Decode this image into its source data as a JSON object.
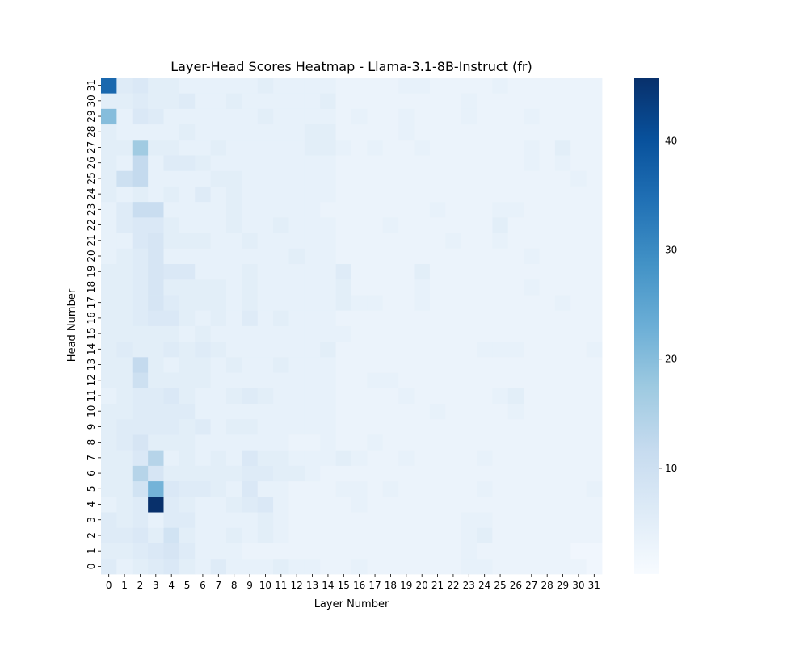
{
  "chart_data": {
    "type": "heatmap",
    "title": "Layer-Head Scores Heatmap - Llama-3.1-8B-Instruct (fr)",
    "xlabel": "Layer Number",
    "ylabel": "Head Number",
    "x_ticks": [
      "0",
      "1",
      "2",
      "3",
      "4",
      "5",
      "6",
      "7",
      "8",
      "9",
      "10",
      "11",
      "12",
      "13",
      "14",
      "15",
      "16",
      "17",
      "18",
      "19",
      "20",
      "21",
      "22",
      "23",
      "24",
      "25",
      "26",
      "27",
      "28",
      "29",
      "30",
      "31"
    ],
    "y_ticks": [
      "0",
      "1",
      "2",
      "3",
      "4",
      "5",
      "6",
      "7",
      "8",
      "9",
      "10",
      "11",
      "12",
      "13",
      "14",
      "15",
      "16",
      "17",
      "18",
      "19",
      "20",
      "21",
      "22",
      "23",
      "24",
      "25",
      "26",
      "27",
      "28",
      "29",
      "30",
      "31"
    ],
    "colorscale": "Blues",
    "vmin": 0.3,
    "vmax": 45.8,
    "colorbar_ticks": [
      "10",
      "20",
      "30",
      "40"
    ],
    "colorbar_tick_values": [
      10,
      20,
      30,
      40
    ],
    "values": [
      [
        6,
        4,
        5,
        6,
        7,
        5,
        4,
        6,
        4,
        4,
        4,
        5,
        4,
        4,
        3,
        3,
        4,
        3,
        3,
        3,
        3,
        3,
        3,
        4,
        4,
        3,
        3,
        3,
        3,
        3,
        3,
        2
      ],
      [
        5,
        5,
        6,
        7,
        8,
        6,
        4,
        4,
        4,
        3,
        3,
        3,
        3,
        3,
        3,
        3,
        3,
        3,
        3,
        3,
        3,
        3,
        3,
        4,
        3,
        3,
        3,
        3,
        3,
        3,
        2,
        2
      ],
      [
        6,
        6,
        7,
        5,
        9,
        5,
        4,
        4,
        5,
        4,
        5,
        4,
        3,
        3,
        3,
        3,
        3,
        3,
        3,
        3,
        3,
        3,
        3,
        4,
        5,
        3,
        3,
        3,
        3,
        3,
        3,
        3
      ],
      [
        6,
        5,
        6,
        4,
        6,
        6,
        4,
        4,
        4,
        4,
        5,
        4,
        3,
        3,
        3,
        3,
        3,
        3,
        3,
        3,
        3,
        3,
        3,
        4,
        4,
        3,
        3,
        3,
        3,
        3,
        3,
        3
      ],
      [
        4,
        5,
        6,
        45.8,
        6,
        5,
        4,
        4,
        5,
        6,
        7,
        4,
        3,
        3,
        3,
        3,
        4,
        3,
        3,
        3,
        3,
        3,
        3,
        3,
        3,
        3,
        3,
        3,
        3,
        3,
        3,
        3
      ],
      [
        5,
        5,
        9,
        22,
        7,
        6,
        6,
        5,
        4,
        7,
        4,
        4,
        3,
        3,
        3,
        4,
        4,
        3,
        4,
        3,
        3,
        3,
        3,
        3,
        4,
        3,
        3,
        3,
        3,
        3,
        3,
        4
      ],
      [
        5,
        5,
        14,
        8,
        5,
        5,
        5,
        5,
        5,
        6,
        6,
        5,
        5,
        4,
        3,
        3,
        3,
        3,
        3,
        3,
        3,
        3,
        3,
        3,
        3,
        3,
        3,
        3,
        3,
        3,
        3,
        3
      ],
      [
        5,
        5,
        7,
        14,
        4,
        5,
        4,
        5,
        4,
        7,
        5,
        5,
        4,
        4,
        4,
        5,
        4,
        3,
        3,
        4,
        3,
        3,
        3,
        3,
        4,
        3,
        3,
        3,
        3,
        3,
        3,
        3
      ],
      [
        5,
        6,
        8,
        5,
        5,
        5,
        4,
        4,
        4,
        4,
        4,
        4,
        3,
        3,
        4,
        3,
        3,
        4,
        3,
        3,
        3,
        3,
        3,
        3,
        3,
        3,
        3,
        3,
        3,
        3,
        3,
        3
      ],
      [
        5,
        6,
        6,
        6,
        6,
        5,
        6,
        4,
        5,
        5,
        4,
        4,
        4,
        4,
        4,
        3,
        3,
        3,
        3,
        3,
        3,
        3,
        3,
        3,
        3,
        3,
        3,
        3,
        3,
        3,
        3,
        3
      ],
      [
        5,
        5,
        6,
        6,
        6,
        6,
        4,
        4,
        4,
        4,
        4,
        4,
        4,
        4,
        4,
        3,
        3,
        3,
        3,
        3,
        3,
        4,
        3,
        3,
        3,
        3,
        4,
        3,
        3,
        3,
        3,
        3
      ],
      [
        4,
        5,
        6,
        6,
        7,
        5,
        4,
        4,
        5,
        6,
        5,
        4,
        4,
        4,
        4,
        3,
        3,
        3,
        3,
        4,
        3,
        3,
        3,
        3,
        3,
        4,
        5,
        3,
        3,
        3,
        3,
        3
      ],
      [
        5,
        5,
        10,
        5,
        5,
        5,
        5,
        4,
        4,
        4,
        4,
        4,
        4,
        4,
        4,
        3,
        3,
        4,
        4,
        3,
        3,
        3,
        3,
        3,
        3,
        3,
        3,
        3,
        3,
        3,
        3,
        3
      ],
      [
        5,
        5,
        12,
        5,
        4,
        5,
        5,
        4,
        5,
        4,
        4,
        5,
        4,
        4,
        4,
        3,
        3,
        3,
        3,
        3,
        3,
        3,
        3,
        3,
        3,
        3,
        3,
        3,
        3,
        3,
        3,
        3
      ],
      [
        5,
        6,
        5,
        5,
        6,
        5,
        6,
        5,
        4,
        4,
        4,
        4,
        4,
        4,
        5,
        3,
        3,
        3,
        3,
        3,
        3,
        3,
        3,
        3,
        4,
        4,
        4,
        3,
        3,
        3,
        3,
        4
      ],
      [
        5,
        5,
        5,
        5,
        5,
        4,
        5,
        4,
        4,
        4,
        4,
        4,
        4,
        4,
        4,
        4,
        3,
        3,
        3,
        3,
        3,
        3,
        3,
        3,
        3,
        3,
        3,
        3,
        3,
        3,
        3,
        3
      ],
      [
        5,
        5,
        6,
        7,
        7,
        5,
        4,
        5,
        4,
        6,
        4,
        5,
        4,
        4,
        4,
        3,
        3,
        3,
        3,
        3,
        3,
        3,
        3,
        3,
        3,
        3,
        3,
        3,
        3,
        3,
        3,
        3
      ],
      [
        5,
        5,
        6,
        8,
        6,
        5,
        5,
        5,
        4,
        5,
        4,
        4,
        4,
        4,
        4,
        5,
        4,
        4,
        3,
        3,
        4,
        3,
        3,
        3,
        3,
        3,
        3,
        3,
        3,
        4,
        3,
        3
      ],
      [
        5,
        5,
        6,
        8,
        5,
        5,
        5,
        5,
        4,
        5,
        4,
        4,
        4,
        4,
        4,
        5,
        3,
        3,
        3,
        3,
        4,
        3,
        3,
        3,
        3,
        3,
        3,
        4,
        3,
        3,
        3,
        3
      ],
      [
        5,
        5,
        6,
        8,
        7,
        7,
        4,
        4,
        4,
        5,
        4,
        4,
        4,
        4,
        4,
        6,
        3,
        3,
        3,
        3,
        5,
        3,
        3,
        3,
        3,
        3,
        3,
        3,
        3,
        3,
        3,
        3
      ],
      [
        4,
        5,
        6,
        8,
        4,
        4,
        4,
        4,
        4,
        4,
        4,
        4,
        5,
        4,
        4,
        3,
        3,
        3,
        3,
        3,
        3,
        3,
        3,
        3,
        3,
        3,
        3,
        4,
        3,
        3,
        3,
        3
      ],
      [
        4,
        4,
        7,
        8,
        5,
        5,
        5,
        4,
        4,
        5,
        4,
        4,
        4,
        4,
        4,
        3,
        3,
        3,
        3,
        3,
        3,
        3,
        4,
        3,
        3,
        4,
        3,
        3,
        3,
        3,
        3,
        3
      ],
      [
        4,
        6,
        7,
        7,
        5,
        4,
        4,
        4,
        5,
        4,
        4,
        5,
        4,
        4,
        4,
        3,
        3,
        3,
        4,
        3,
        3,
        3,
        3,
        3,
        3,
        5,
        3,
        3,
        3,
        3,
        3,
        3
      ],
      [
        4,
        6,
        11,
        11,
        4,
        4,
        4,
        4,
        5,
        4,
        4,
        4,
        4,
        4,
        3,
        3,
        3,
        3,
        3,
        3,
        3,
        4,
        3,
        3,
        3,
        4,
        4,
        3,
        3,
        3,
        3,
        3
      ],
      [
        5,
        4,
        5,
        4,
        5,
        4,
        6,
        4,
        5,
        4,
        4,
        4,
        4,
        4,
        4,
        3,
        3,
        3,
        3,
        3,
        3,
        3,
        3,
        3,
        3,
        3,
        3,
        3,
        3,
        3,
        3,
        3
      ],
      [
        5,
        10,
        12,
        4,
        4,
        4,
        4,
        5,
        5,
        4,
        4,
        4,
        4,
        4,
        4,
        3,
        3,
        3,
        3,
        3,
        3,
        3,
        3,
        3,
        3,
        3,
        3,
        3,
        3,
        3,
        4,
        3
      ],
      [
        5,
        4,
        12,
        4,
        6,
        6,
        5,
        4,
        4,
        4,
        4,
        4,
        4,
        4,
        4,
        3,
        3,
        3,
        3,
        3,
        3,
        3,
        3,
        3,
        3,
        3,
        3,
        4,
        3,
        4,
        3,
        3
      ],
      [
        5,
        5,
        17,
        5,
        5,
        4,
        4,
        5,
        4,
        4,
        4,
        4,
        4,
        5,
        5,
        4,
        3,
        4,
        3,
        3,
        4,
        3,
        3,
        3,
        3,
        3,
        3,
        4,
        3,
        5,
        3,
        3
      ],
      [
        5,
        4,
        4,
        4,
        4,
        5,
        4,
        4,
        4,
        4,
        4,
        4,
        4,
        5,
        5,
        3,
        3,
        3,
        3,
        4,
        3,
        3,
        3,
        3,
        3,
        3,
        3,
        3,
        3,
        3,
        3,
        3
      ],
      [
        20,
        4,
        7,
        6,
        4,
        4,
        4,
        4,
        4,
        4,
        5,
        4,
        4,
        4,
        4,
        3,
        4,
        3,
        3,
        4,
        3,
        3,
        3,
        4,
        3,
        3,
        3,
        4,
        3,
        3,
        3,
        3
      ],
      [
        5,
        5,
        6,
        5,
        5,
        6,
        4,
        4,
        5,
        4,
        4,
        4,
        4,
        4,
        5,
        3,
        3,
        3,
        3,
        3,
        3,
        3,
        3,
        4,
        3,
        3,
        3,
        3,
        3,
        3,
        3,
        3
      ],
      [
        36,
        6,
        7,
        5,
        5,
        4,
        4,
        4,
        4,
        4,
        5,
        4,
        4,
        4,
        4,
        3,
        3,
        3,
        3,
        4,
        4,
        3,
        3,
        3,
        3,
        4,
        3,
        3,
        3,
        3,
        3,
        3
      ]
    ]
  }
}
